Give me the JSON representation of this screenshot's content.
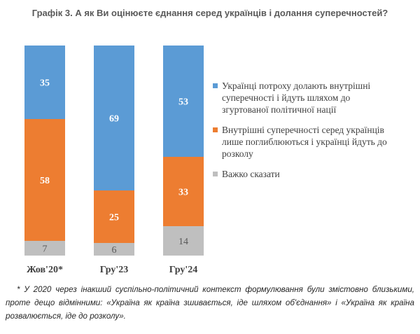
{
  "chart_data": {
    "type": "bar",
    "stacked": true,
    "normalized": true,
    "title": "Графік 3. А як Ви оцінюєте єднання серед українців і долання суперечностей?",
    "categories": [
      "Жов'20*",
      "Гру'23",
      "Гру'24"
    ],
    "series": [
      {
        "name": "Важко сказати",
        "values": [
          7,
          6,
          14
        ],
        "color": "#bfbfbf",
        "label_color": "#595959"
      },
      {
        "name": "Внутрішні суперечності серед українців лише поглиблюються і українці йдуть до розколу",
        "values": [
          58,
          25,
          33
        ],
        "color": "#ed7d31",
        "label_color": "#ffffff"
      },
      {
        "name": "Українці потроху долають внутрішні суперечності і йдуть шляхом до згуртованої політичної нації",
        "values": [
          35,
          69,
          53
        ],
        "color": "#5b9bd5",
        "label_color": "#ffffff"
      }
    ],
    "legend_order": [
      2,
      1,
      0
    ],
    "legend_position": "right",
    "grid": false
  },
  "footnote": "* У 2020 через інакший суспільно-політичний контекст формулювання були змістовно близькими, проте дещо відмінними: «Україна як країна зшивається, іде шляхом об'єднання» і «Україна як країна розвалюється, іде до розколу»."
}
